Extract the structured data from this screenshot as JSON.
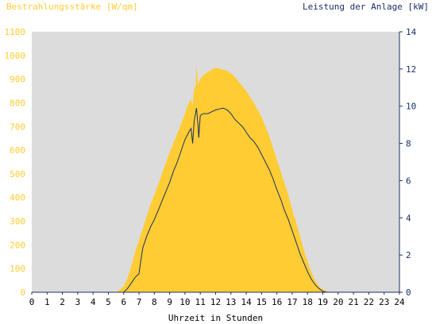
{
  "chart_data": {
    "type": "area",
    "title_left": "Bestrahlungsstärke [W/qm]",
    "title_right": "Leistung der Anlage [kW]",
    "xlabel": "Uhrzeit in Stunden",
    "x_ticks": [
      0,
      1,
      2,
      3,
      4,
      5,
      6,
      7,
      8,
      9,
      10,
      11,
      12,
      13,
      14,
      15,
      16,
      17,
      18,
      19,
      20,
      21,
      22,
      23,
      24
    ],
    "y_left": {
      "min": 0,
      "max": 1100,
      "ticks": [
        0,
        100,
        200,
        300,
        400,
        500,
        600,
        700,
        800,
        900,
        1000,
        1100
      ]
    },
    "y_right": {
      "min": 0,
      "max": 14,
      "ticks": [
        0,
        2,
        4,
        6,
        8,
        10,
        12,
        14
      ]
    },
    "grid": false,
    "colors": {
      "irradiance": "#ffcc33",
      "power": "#1a2f66",
      "left_axis_text": "#ffcc33",
      "right_axis_text": "#1a2f66",
      "plot_bg": "#dcdcdc",
      "axis": "#1a2f66"
    },
    "series": [
      {
        "name": "Bestrahlungsstärke",
        "axis": "left",
        "points": [
          [
            0,
            0
          ],
          [
            5.5,
            0
          ],
          [
            5.75,
            10
          ],
          [
            6,
            25
          ],
          [
            6.25,
            60
          ],
          [
            6.5,
            110
          ],
          [
            6.75,
            170
          ],
          [
            7,
            220
          ],
          [
            7.25,
            270
          ],
          [
            7.5,
            320
          ],
          [
            7.75,
            370
          ],
          [
            8,
            410
          ],
          [
            8.25,
            455
          ],
          [
            8.5,
            500
          ],
          [
            8.75,
            545
          ],
          [
            9,
            590
          ],
          [
            9.25,
            630
          ],
          [
            9.5,
            670
          ],
          [
            9.75,
            710
          ],
          [
            10,
            755
          ],
          [
            10.25,
            800
          ],
          [
            10.4,
            815
          ],
          [
            10.5,
            790
          ],
          [
            10.6,
            860
          ],
          [
            10.7,
            870
          ],
          [
            10.75,
            960
          ],
          [
            10.85,
            880
          ],
          [
            11,
            900
          ],
          [
            11.25,
            920
          ],
          [
            11.5,
            930
          ],
          [
            11.75,
            940
          ],
          [
            12,
            948
          ],
          [
            12.25,
            945
          ],
          [
            12.5,
            940
          ],
          [
            12.75,
            935
          ],
          [
            13,
            925
          ],
          [
            13.25,
            910
          ],
          [
            13.5,
            890
          ],
          [
            13.75,
            870
          ],
          [
            14,
            850
          ],
          [
            14.25,
            825
          ],
          [
            14.5,
            800
          ],
          [
            14.75,
            770
          ],
          [
            15,
            740
          ],
          [
            15.25,
            700
          ],
          [
            15.5,
            660
          ],
          [
            15.75,
            610
          ],
          [
            16,
            560
          ],
          [
            16.25,
            510
          ],
          [
            16.5,
            460
          ],
          [
            16.75,
            410
          ],
          [
            17,
            350
          ],
          [
            17.25,
            295
          ],
          [
            17.5,
            240
          ],
          [
            17.75,
            180
          ],
          [
            18,
            130
          ],
          [
            18.25,
            85
          ],
          [
            18.5,
            50
          ],
          [
            18.75,
            25
          ],
          [
            19,
            12
          ],
          [
            19.25,
            5
          ],
          [
            19.5,
            0
          ],
          [
            24,
            0
          ]
        ]
      },
      {
        "name": "Leistung",
        "axis": "right",
        "points": [
          [
            0,
            0
          ],
          [
            6,
            0
          ],
          [
            6.25,
            0.2
          ],
          [
            6.5,
            0.5
          ],
          [
            6.75,
            0.8
          ],
          [
            7,
            1.0
          ],
          [
            7.1,
            1.6
          ],
          [
            7.25,
            2.4
          ],
          [
            7.5,
            3.0
          ],
          [
            7.75,
            3.5
          ],
          [
            8,
            3.9
          ],
          [
            8.25,
            4.4
          ],
          [
            8.5,
            4.9
          ],
          [
            8.75,
            5.4
          ],
          [
            9,
            5.9
          ],
          [
            9.25,
            6.5
          ],
          [
            9.5,
            7.0
          ],
          [
            9.75,
            7.6
          ],
          [
            10,
            8.2
          ],
          [
            10.25,
            8.6
          ],
          [
            10.4,
            8.8
          ],
          [
            10.5,
            8.0
          ],
          [
            10.6,
            9.2
          ],
          [
            10.75,
            9.9
          ],
          [
            10.85,
            9.0
          ],
          [
            10.9,
            8.3
          ],
          [
            11,
            9.5
          ],
          [
            11.2,
            9.6
          ],
          [
            11.5,
            9.6
          ],
          [
            11.75,
            9.7
          ],
          [
            12,
            9.8
          ],
          [
            12.25,
            9.85
          ],
          [
            12.5,
            9.9
          ],
          [
            12.75,
            9.8
          ],
          [
            13,
            9.6
          ],
          [
            13.25,
            9.3
          ],
          [
            13.5,
            9.1
          ],
          [
            13.75,
            8.9
          ],
          [
            14,
            8.6
          ],
          [
            14.25,
            8.3
          ],
          [
            14.5,
            8.1
          ],
          [
            14.75,
            7.8
          ],
          [
            15,
            7.4
          ],
          [
            15.25,
            7.0
          ],
          [
            15.5,
            6.6
          ],
          [
            15.75,
            6.1
          ],
          [
            16,
            5.5
          ],
          [
            16.25,
            5.0
          ],
          [
            16.5,
            4.4
          ],
          [
            16.75,
            3.9
          ],
          [
            17,
            3.3
          ],
          [
            17.25,
            2.7
          ],
          [
            17.5,
            2.1
          ],
          [
            17.75,
            1.6
          ],
          [
            18,
            1.1
          ],
          [
            18.25,
            0.7
          ],
          [
            18.5,
            0.4
          ],
          [
            18.75,
            0.2
          ],
          [
            19,
            0.05
          ],
          [
            19.25,
            0
          ],
          [
            24,
            0
          ]
        ]
      }
    ]
  }
}
